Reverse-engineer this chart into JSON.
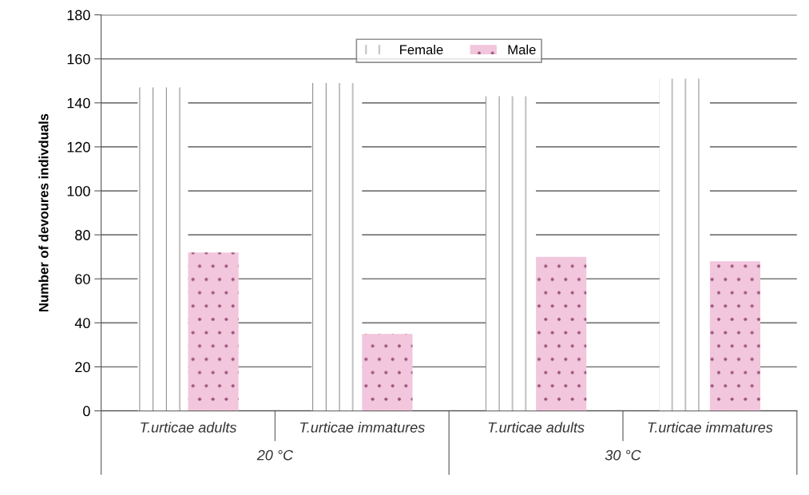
{
  "chart_data": {
    "type": "bar",
    "ylabel": "Number of devoures indivduals",
    "categories": [
      "T.urticae adults",
      "T.urticae immatures",
      "T.urticae adults",
      "T.urticae immatures"
    ],
    "series": [
      {
        "name": "Female",
        "color": "#ffffff",
        "values": [
          147,
          149,
          143,
          151
        ]
      },
      {
        "name": "Male",
        "color": "#f2c6dc",
        "values": [
          72,
          35,
          70,
          68
        ]
      }
    ],
    "annotations": [
      "20 °C",
      "30 °C"
    ],
    "ylim": [
      0,
      180
    ],
    "yticks": [
      0,
      20,
      40,
      60,
      80,
      100,
      120,
      140,
      160,
      180
    ],
    "grid": "y",
    "legend": "top"
  }
}
